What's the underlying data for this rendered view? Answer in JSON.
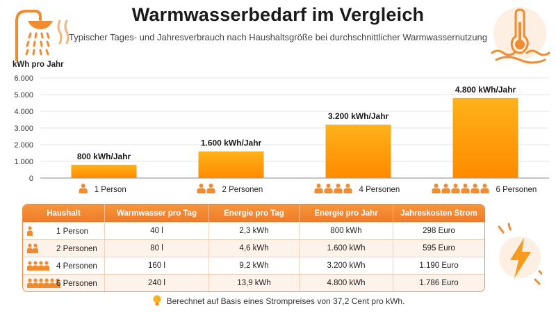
{
  "header": {
    "title": "Warmwasserbedarf im Vergleich",
    "subtitle": "Typischer Tages- und Jahresverbrauch nach Haushaltsgröße bei durchschnittlicher Warmwassernutzung"
  },
  "icons": {
    "left": "shower-icon",
    "right": "thermometer-water-icon",
    "bolt": "lightning-bolt-icon",
    "person": "person-icon",
    "note": "lightbulb-icon"
  },
  "colors": {
    "accent": "#f28a2e",
    "bar_top": "#ffb21a",
    "bar_bottom": "#ff8a00",
    "table_header": "#f28a2e"
  },
  "chart_data": {
    "type": "bar",
    "ylabel": "kWh pro Jahr",
    "ylim": [
      0,
      6000
    ],
    "yticks": [
      "0",
      "1.000",
      "2.000",
      "3.000",
      "4.000",
      "5.000",
      "6.000"
    ],
    "categories": [
      "1 Person",
      "2 Personen",
      "4 Personen",
      "6 Personen"
    ],
    "persons": [
      1,
      2,
      4,
      6
    ],
    "values": [
      800,
      1600,
      3200,
      4800
    ],
    "data_labels": [
      "800 kWh/Jahr",
      "1.600 kWh/Jahr",
      "3.200 kWh/Jahr",
      "4.800 kWh/Jahr"
    ],
    "grid": true
  },
  "table": {
    "headers": [
      "Haushalt",
      "Warmwasser pro Tag",
      "Energie pro Tag",
      "Energie pro Jahr",
      "Jahreskosten Strom"
    ],
    "rows": [
      {
        "persons": 1,
        "cells": [
          "1 Person",
          "40 l",
          "2,3 kWh",
          "800 kWh",
          "298 Euro"
        ]
      },
      {
        "persons": 2,
        "cells": [
          "2 Personen",
          "80 l",
          "4,6 kWh",
          "1.600 kWh",
          "595 Euro"
        ]
      },
      {
        "persons": 4,
        "cells": [
          "4 Personen",
          "160 l",
          "9,2 kWh",
          "3.200 kWh",
          "1.190 Euro"
        ]
      },
      {
        "persons": 6,
        "cells": [
          "6 Personen",
          "240 l",
          "13,9 kWh",
          "4.800 kWh",
          "1.786 Euro"
        ]
      }
    ]
  },
  "footer": {
    "note": "Berechnet auf Basis eines Strompreises von 37,2 Cent pro kWh."
  }
}
